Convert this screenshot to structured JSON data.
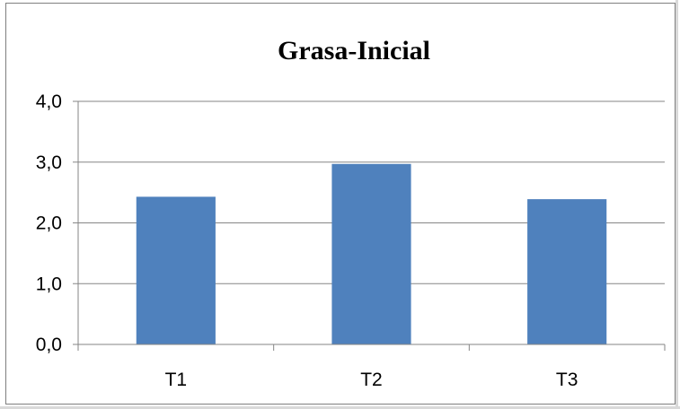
{
  "chart_data": {
    "type": "bar",
    "title": "Grasa-Inicial",
    "xlabel": "",
    "ylabel": "",
    "categories": [
      "T1",
      "T2",
      "T3"
    ],
    "values": [
      2.43,
      2.97,
      2.39
    ],
    "ylim": [
      0,
      4
    ],
    "yticks": [
      "0,0",
      "1,0",
      "2,0",
      "3,0",
      "4,0"
    ],
    "grid": true,
    "legend": "none",
    "colors": {
      "bar": "#4f81bd",
      "grid": "#868686",
      "axis": "#868686"
    }
  }
}
